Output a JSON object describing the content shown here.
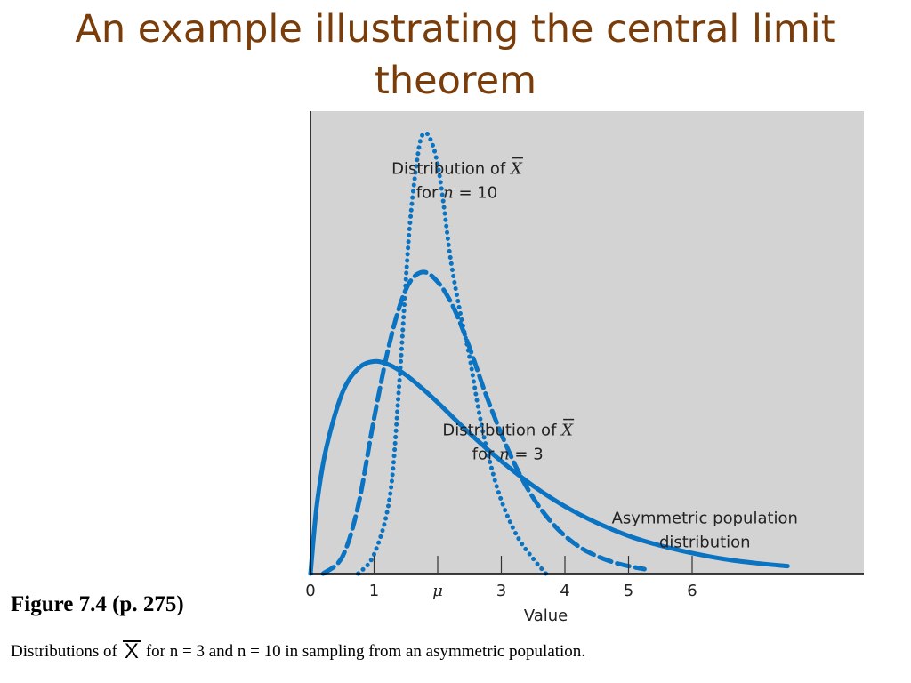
{
  "slide": {
    "title_line1": "An example illustrating the central limit",
    "title_line2": "theorem"
  },
  "caption": {
    "figure_label": "Figure 7.4  (p. 275)",
    "desc_before": "Distributions of",
    "desc_symbol": "X",
    "desc_after": "for n = 3 and n = 10 in sampling from an asymmetric population."
  },
  "colors": {
    "title": "#7a3d0a",
    "plot_background": "#d3d3d3",
    "curve": "#0a73c2",
    "axis": "#000000"
  },
  "chart_data": {
    "type": "line",
    "xlabel": "Value",
    "ylabel": "",
    "xlim": [
      0,
      8.6
    ],
    "ylim": [
      0,
      1.22
    ],
    "grid": false,
    "legend": "none",
    "x_ticks": [
      {
        "value": 0,
        "label": "0"
      },
      {
        "value": 1,
        "label": "1"
      },
      {
        "value": 2,
        "label": "μ"
      },
      {
        "value": 3,
        "label": "3"
      },
      {
        "value": 4,
        "label": "4"
      },
      {
        "value": 5,
        "label": "5"
      },
      {
        "value": 6,
        "label": "6"
      }
    ],
    "series": [
      {
        "label_line1": "Asymmetric population",
        "label_line2": "distribution",
        "dash": "solid",
        "label_anchor": {
          "x": 6.2,
          "y": 0.135
        },
        "x": [
          0,
          0.1,
          0.25,
          0.5,
          0.75,
          1.0,
          1.25,
          1.5,
          1.75,
          2.0,
          2.5,
          3.0,
          3.5,
          4.0,
          4.5,
          5.0,
          5.5,
          6.0,
          6.5,
          7.0,
          7.5
        ],
        "y": [
          0,
          0.183,
          0.338,
          0.484,
          0.549,
          0.568,
          0.558,
          0.532,
          0.497,
          0.458,
          0.376,
          0.301,
          0.235,
          0.18,
          0.136,
          0.101,
          0.075,
          0.055,
          0.039,
          0.028,
          0.02
        ]
      },
      {
        "label_line1": "Distribution of X",
        "label_line2": "for n = 3",
        "dash": "dashed",
        "label_anchor": {
          "x": 3.1,
          "y": 0.37
        },
        "x": [
          0.2,
          0.5,
          0.75,
          1.0,
          1.25,
          1.5,
          1.75,
          2.0,
          2.25,
          2.5,
          2.75,
          3.0,
          3.25,
          3.5,
          3.75,
          4.0,
          4.25,
          4.5,
          4.75,
          5.0,
          5.25
        ],
        "y": [
          0,
          0.045,
          0.182,
          0.416,
          0.622,
          0.761,
          0.807,
          0.781,
          0.712,
          0.605,
          0.483,
          0.374,
          0.279,
          0.203,
          0.145,
          0.101,
          0.069,
          0.047,
          0.031,
          0.02,
          0.012
        ]
      },
      {
        "label_line1": "Distribution of X",
        "label_line2": "for n = 10",
        "dash": "dotted",
        "label_anchor": {
          "x": 2.3,
          "y": 1.07
        },
        "x": [
          0.75,
          1.0,
          1.25,
          1.4,
          1.55,
          1.7,
          1.8,
          1.9,
          2.0,
          2.1,
          2.2,
          2.35,
          2.5,
          2.65,
          2.8,
          3.0,
          3.25,
          3.5,
          3.7
        ],
        "y": [
          0,
          0.052,
          0.209,
          0.519,
          0.909,
          1.135,
          1.179,
          1.157,
          1.095,
          0.981,
          0.845,
          0.702,
          0.58,
          0.432,
          0.313,
          0.196,
          0.1,
          0.04,
          0.0
        ]
      }
    ]
  }
}
